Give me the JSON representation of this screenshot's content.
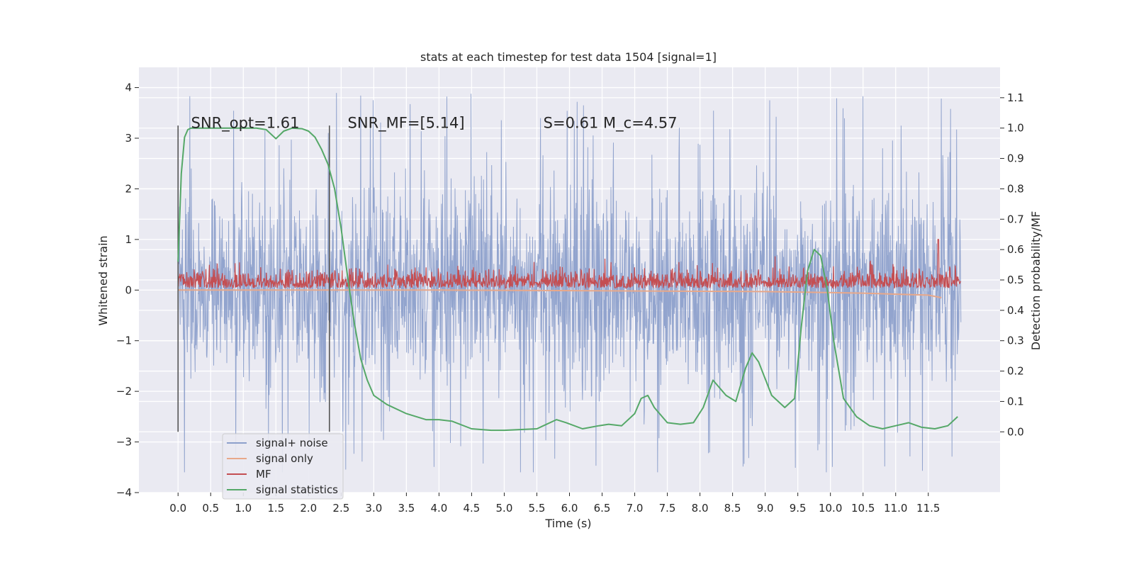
{
  "chart_data": {
    "type": "line",
    "title": "stats at each timestep for test data 1504 [signal=1]",
    "xlabel": "Time (s)",
    "ylabel_left": "Whitened strain",
    "ylabel_right": "Detection probability/MF",
    "xlim": [
      -0.6,
      12.6
    ],
    "ylim_left": [
      -4.0,
      4.4
    ],
    "ylim_right": [
      -0.2,
      1.2
    ],
    "xticks": [
      "0.0",
      "0.5",
      "1.0",
      "1.5",
      "2.0",
      "2.5",
      "3.0",
      "3.5",
      "4.0",
      "4.5",
      "5.0",
      "5.5",
      "6.0",
      "6.5",
      "7.0",
      "7.5",
      "8.0",
      "8.5",
      "9.0",
      "9.5",
      "10.0",
      "10.5",
      "11.0",
      "11.5"
    ],
    "yticks_left": [
      "4",
      "3",
      "2",
      "1",
      "0",
      "−1",
      "−2",
      "−3",
      "−4"
    ],
    "yticks_right": [
      "1.1",
      "1.0",
      "0.9",
      "0.8",
      "0.7",
      "0.6",
      "0.5",
      "0.4",
      "0.3",
      "0.2",
      "0.1",
      "0.0"
    ],
    "grid": true,
    "legend_position": "lower-left",
    "annotations": [
      {
        "text": "SNR_opt=1.61",
        "x": 0.2,
        "y": 3.2
      },
      {
        "text": "SNR_MF=[5.14]",
        "x": 2.6,
        "y": 3.2
      },
      {
        "text": "S=0.61   M_c=4.57",
        "x": 5.6,
        "y": 3.2
      }
    ],
    "vertical_markers": [
      0.0,
      2.32
    ],
    "series": [
      {
        "name": "signal+ noise",
        "axis": "left",
        "color": "#8da0cb",
        "kind": "noise",
        "x_range": [
          0.0,
          12.0
        ],
        "y_range": [
          -3.6,
          4.1
        ]
      },
      {
        "name": "signal only",
        "axis": "left",
        "color": "#e8a88a",
        "kind": "signal",
        "x": [
          0.0,
          4.0,
          7.5,
          9.0,
          10.5,
          11.5,
          11.7
        ],
        "y": [
          0.0,
          0.0,
          -0.02,
          -0.03,
          -0.06,
          -0.1,
          -0.15
        ]
      },
      {
        "name": "MF",
        "axis": "left",
        "color": "#c44e52",
        "kind": "mf",
        "x_range": [
          0.0,
          12.0
        ],
        "y_range": [
          0.0,
          1.0
        ]
      },
      {
        "name": "signal statistics",
        "axis": "right",
        "color": "#55a868",
        "kind": "line",
        "x": [
          0.0,
          0.05,
          0.1,
          0.15,
          0.2,
          0.3,
          0.5,
          0.8,
          1.0,
          1.2,
          1.35,
          1.5,
          1.62,
          1.75,
          1.9,
          2.0,
          2.1,
          2.2,
          2.3,
          2.4,
          2.5,
          2.6,
          2.7,
          2.8,
          2.9,
          3.0,
          3.2,
          3.5,
          3.8,
          4.0,
          4.2,
          4.5,
          4.8,
          5.0,
          5.5,
          5.8,
          5.95,
          6.2,
          6.45,
          6.6,
          6.8,
          7.0,
          7.1,
          7.2,
          7.3,
          7.5,
          7.7,
          7.9,
          8.05,
          8.2,
          8.4,
          8.55,
          8.7,
          8.8,
          8.9,
          9.1,
          9.3,
          9.45,
          9.55,
          9.65,
          9.75,
          9.85,
          9.95,
          10.05,
          10.2,
          10.4,
          10.6,
          10.8,
          11.0,
          11.2,
          11.4,
          11.6,
          11.8,
          11.95
        ],
        "y": [
          0.56,
          0.85,
          0.97,
          0.995,
          1.0,
          1.0,
          1.0,
          1.0,
          1.0,
          1.0,
          0.995,
          0.965,
          0.99,
          1.0,
          0.998,
          0.99,
          0.97,
          0.93,
          0.88,
          0.8,
          0.67,
          0.51,
          0.36,
          0.24,
          0.17,
          0.12,
          0.09,
          0.06,
          0.04,
          0.04,
          0.035,
          0.01,
          0.005,
          0.005,
          0.01,
          0.04,
          0.03,
          0.01,
          0.02,
          0.025,
          0.02,
          0.06,
          0.11,
          0.12,
          0.08,
          0.03,
          0.025,
          0.03,
          0.08,
          0.17,
          0.12,
          0.1,
          0.21,
          0.26,
          0.23,
          0.12,
          0.08,
          0.11,
          0.34,
          0.53,
          0.6,
          0.58,
          0.47,
          0.3,
          0.11,
          0.05,
          0.02,
          0.01,
          0.02,
          0.03,
          0.015,
          0.01,
          0.02,
          0.05
        ]
      }
    ]
  }
}
